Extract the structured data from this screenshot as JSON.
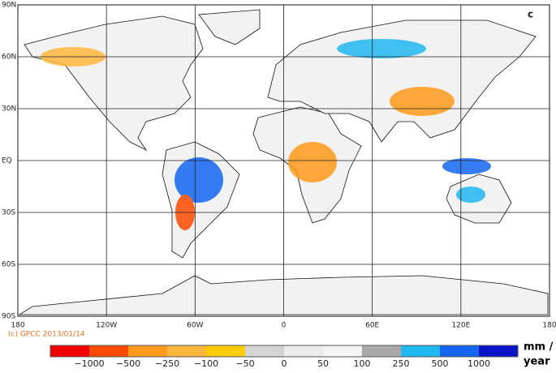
{
  "panel_label": "c",
  "lat_labels": [
    "90N",
    "60N",
    "30N",
    "EQ",
    "30S",
    "60S",
    "90S"
  ],
  "lon_labels": [
    "180",
    "120W",
    "60W",
    "0",
    "60E",
    "120E",
    "180"
  ],
  "credit": "(c) GPCC 2013/01/14",
  "legend": {
    "labels": [
      "−1000",
      "−500",
      "−250",
      "−100",
      "−50",
      "0",
      "50",
      "100",
      "250",
      "500",
      "1000"
    ],
    "colors": [
      "#f00000",
      "#ff4a00",
      "#ff9a1a",
      "#ffb63c",
      "#ffcc00",
      "#d4d4d4",
      "#ececec",
      "#f4f4f4",
      "#a8a8a8",
      "#22b8f0",
      "#1466f0",
      "#0a14c8"
    ],
    "unit_line1": "mm /",
    "unit_line2": "year"
  }
}
